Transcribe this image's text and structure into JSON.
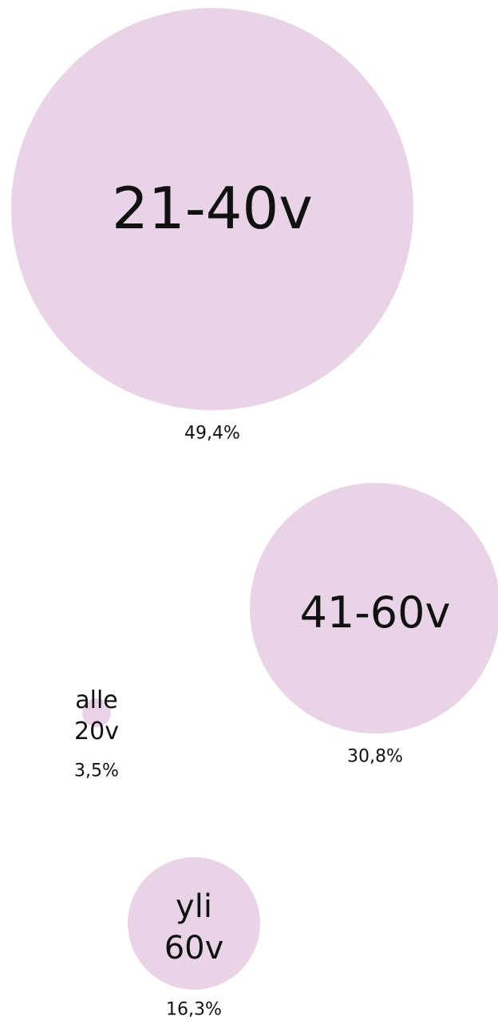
{
  "chart_data": {
    "type": "bubble",
    "categories": [
      "21-40v",
      "41-60v",
      "alle 20v",
      "yli 60v"
    ],
    "values": [
      49.4,
      30.8,
      3.5,
      16.3
    ],
    "value_labels": [
      "49,4%",
      "30,8%",
      "3,5%",
      "16,3%"
    ],
    "color": "#e8d4e6"
  }
}
